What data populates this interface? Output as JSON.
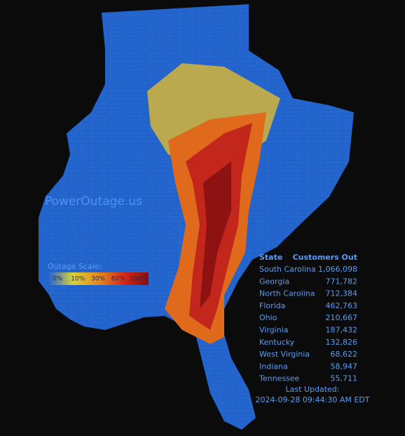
{
  "brand": "PowerOutage.us",
  "scale": {
    "title": "Outage Scale:",
    "labels": [
      "0%",
      "10%",
      "30%",
      "60%",
      "100%"
    ]
  },
  "table": {
    "headers": [
      "State",
      "Customers Out"
    ],
    "rows": [
      [
        "South Carolina",
        "1,066,098"
      ],
      [
        "Georgia",
        "771,782"
      ],
      [
        "North Carolina",
        "712,384"
      ],
      [
        "Florida",
        "462,763"
      ],
      [
        "Ohio",
        "210,667"
      ],
      [
        "Virginia",
        "187,432"
      ],
      [
        "Kentucky",
        "132,826"
      ],
      [
        "West Virginia",
        "68,622"
      ],
      [
        "Indiana",
        "58,947"
      ],
      [
        "Tennessee",
        "55,711"
      ]
    ]
  },
  "updated": {
    "label": "Last Updated:",
    "time": "2024-09-28 09:44:30 AM EDT"
  }
}
